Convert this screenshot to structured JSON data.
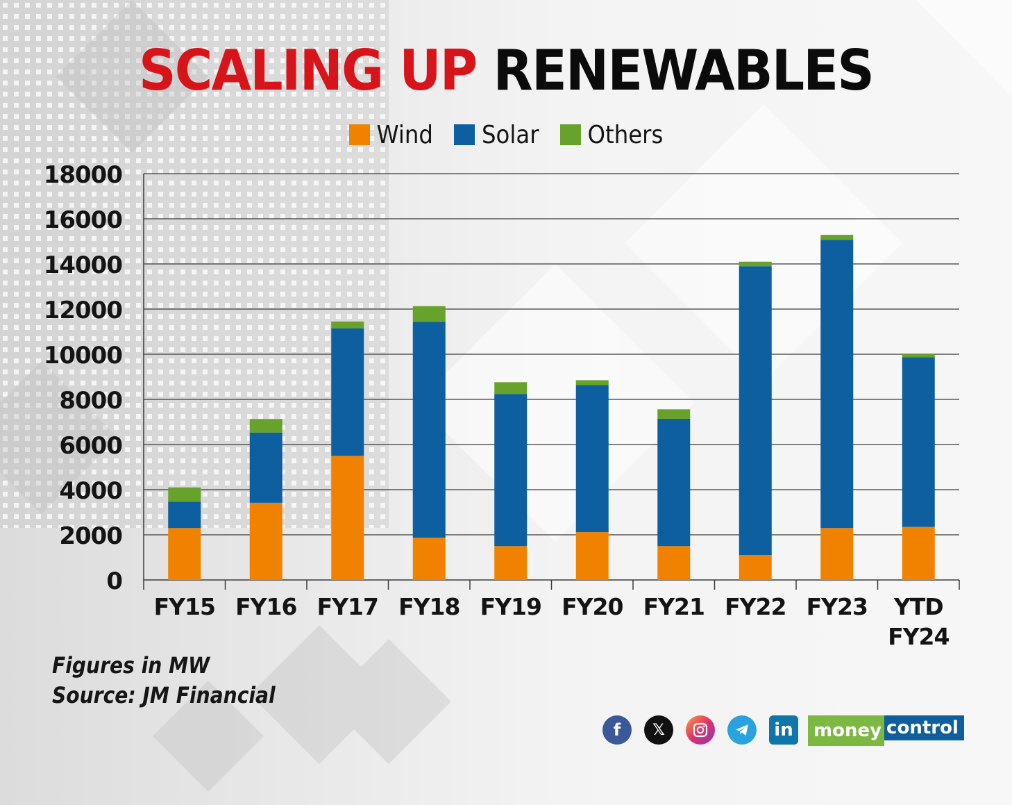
{
  "title": {
    "part1": "SCALING UP",
    "part2": "RENEWABLES"
  },
  "notes": {
    "units": "Figures in MW",
    "source": "Source: JM Financial"
  },
  "brand": {
    "part1": "money",
    "part2": "control"
  },
  "social_icons": [
    "facebook-icon",
    "x-icon",
    "instagram-icon",
    "telegram-icon",
    "linkedin-icon"
  ],
  "colors": {
    "title_red": "#d7141a",
    "wind": "#f08200",
    "solar": "#0d5f9f",
    "others": "#67a22b"
  },
  "chart_data": {
    "type": "bar",
    "stacked": true,
    "categories": [
      "FY15",
      "FY16",
      "FY17",
      "FY18",
      "FY19",
      "FY20",
      "FY21",
      "FY22",
      "FY23",
      "YTD FY24"
    ],
    "category_lines": [
      [
        "FY15"
      ],
      [
        "FY16"
      ],
      [
        "FY17"
      ],
      [
        "FY18"
      ],
      [
        "FY19"
      ],
      [
        "FY20"
      ],
      [
        "FY21"
      ],
      [
        "FY22"
      ],
      [
        "FY23"
      ],
      [
        "YTD",
        "FY24"
      ]
    ],
    "series": [
      {
        "name": "Wind",
        "color": "#f08200",
        "values": [
          2300,
          3420,
          5500,
          1870,
          1500,
          2120,
          1500,
          1100,
          2300,
          2350
        ]
      },
      {
        "name": "Solar",
        "color": "#0d5f9f",
        "values": [
          1170,
          3110,
          5650,
          9560,
          6740,
          6510,
          5640,
          12800,
          12770,
          7520
        ]
      },
      {
        "name": "Others",
        "color": "#67a22b",
        "values": [
          630,
          600,
          300,
          700,
          520,
          220,
          420,
          200,
          220,
          130
        ]
      }
    ],
    "ylim": [
      0,
      18000
    ],
    "yticks": [
      0,
      2000,
      4000,
      6000,
      8000,
      10000,
      12000,
      14000,
      16000,
      18000
    ],
    "grid": true,
    "legend": "top-center"
  }
}
